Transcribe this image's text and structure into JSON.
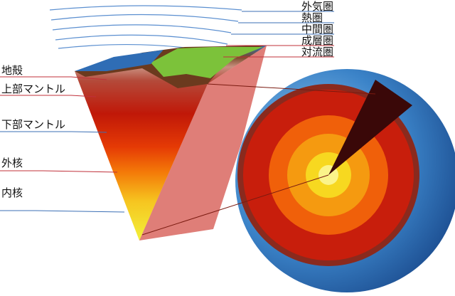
{
  "atmosphere_layers": [
    "外気圏",
    "熱圏",
    "中間圏",
    "成層圏",
    "対流圏"
  ],
  "earth_layers": [
    "地殻",
    "上部マントル",
    "下部マントル",
    "外核",
    "内核"
  ]
}
